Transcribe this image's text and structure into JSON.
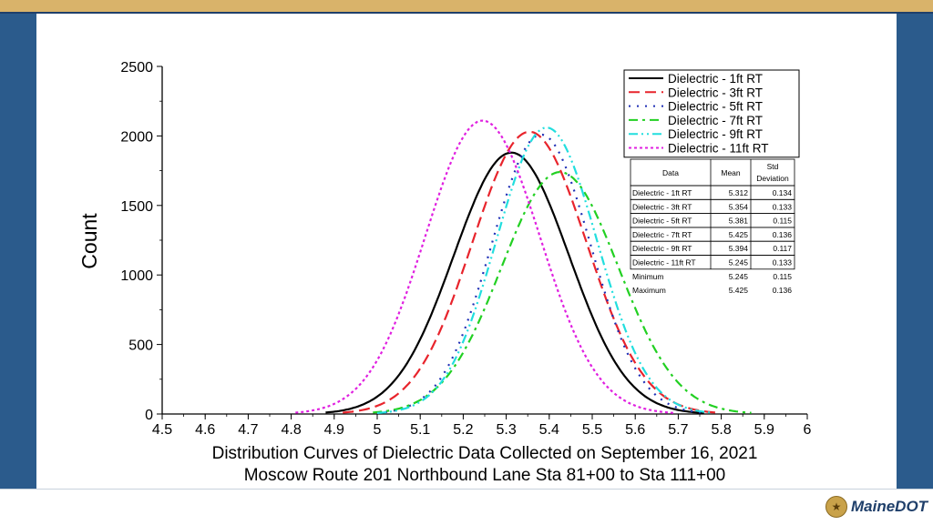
{
  "chart_data": {
    "type": "line",
    "title_line1": "Distribution Curves of Dielectric Data Collected on September 16, 2021",
    "title_line2": "Moscow Route 201 Northbound Lane Sta 81+00 to Sta 111+00",
    "ylabel": "Count",
    "xlim": [
      4.5,
      6.0
    ],
    "ylim": [
      0,
      2500
    ],
    "xticks": [
      "4.5",
      "4.6",
      "4.7",
      "4.8",
      "4.9",
      "5",
      "5.1",
      "5.2",
      "5.3",
      "5.4",
      "5.5",
      "5.6",
      "5.7",
      "5.8",
      "5.9",
      "6"
    ],
    "yticks": [
      "0",
      "500",
      "1000",
      "1500",
      "2000",
      "2500"
    ],
    "legend_position": "top-right",
    "series": [
      {
        "name": "Dielectric - 1ft RT",
        "mean": 5.312,
        "sd": 0.134,
        "peak": 1880,
        "color": "#000000",
        "dash": "solid",
        "x_start": 4.88,
        "x_end": 5.76
      },
      {
        "name": "Dielectric - 3ft RT",
        "mean": 5.354,
        "sd": 0.133,
        "peak": 2030,
        "color": "#e8242c",
        "dash": "dash",
        "x_start": 4.92,
        "x_end": 5.79
      },
      {
        "name": "Dielectric - 5ft RT",
        "mean": 5.381,
        "sd": 0.115,
        "peak": 2010,
        "color": "#1f2fb5",
        "dash": "dot",
        "x_start": 5.0,
        "x_end": 5.76
      },
      {
        "name": "Dielectric - 7ft RT",
        "mean": 5.425,
        "sd": 0.136,
        "peak": 1740,
        "color": "#22d022",
        "dash": "dashdot",
        "x_start": 4.99,
        "x_end": 5.87
      },
      {
        "name": "Dielectric - 9ft RT",
        "mean": 5.394,
        "sd": 0.117,
        "peak": 2060,
        "color": "#22dede",
        "dash": "dashdotdot",
        "x_start": 5.0,
        "x_end": 5.78
      },
      {
        "name": "Dielectric - 11ft RT",
        "mean": 5.245,
        "sd": 0.133,
        "peak": 2110,
        "color": "#e020e0",
        "dash": "shortdot",
        "x_start": 4.81,
        "x_end": 5.69
      }
    ],
    "stats_table": {
      "headers": [
        "Data",
        "Mean",
        "Std Deviation"
      ],
      "rows": [
        [
          "Dielectric - 1ft RT",
          "5.312",
          "0.134"
        ],
        [
          "Dielectric - 3ft RT",
          "5.354",
          "0.133"
        ],
        [
          "Dielectric - 5ft RT",
          "5.381",
          "0.115"
        ],
        [
          "Dielectric - 7ft RT",
          "5.425",
          "0.136"
        ],
        [
          "Dielectric - 9ft RT",
          "5.394",
          "0.117"
        ],
        [
          "Dielectric - 11ft RT",
          "5.245",
          "0.133"
        ]
      ],
      "summary": [
        [
          "Minimum",
          "5.245",
          "0.115"
        ],
        [
          "Maximum",
          "5.425",
          "0.136"
        ]
      ]
    }
  },
  "branding": {
    "logo_text": "MaineDOT",
    "seal_icon": "maine-seal-icon"
  }
}
